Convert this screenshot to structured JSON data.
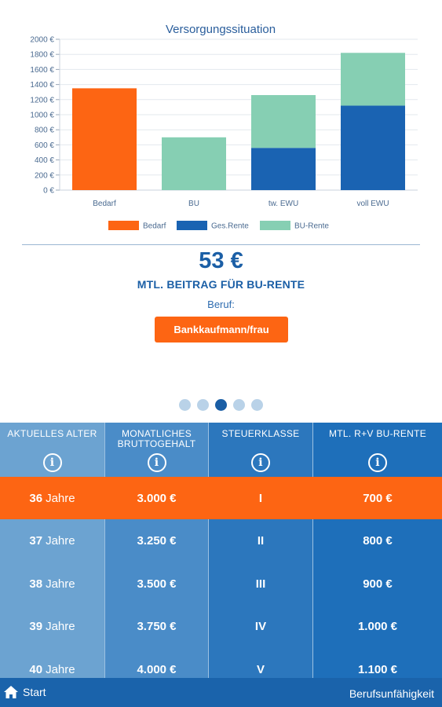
{
  "chart_data": {
    "type": "bar",
    "title": "Versorgungssituation",
    "categories": [
      "Bedarf",
      "BU",
      "tw. EWU",
      "voll EWU"
    ],
    "series": [
      {
        "name": "Bedarf",
        "color": "#fd6513",
        "values": [
          1350,
          0,
          0,
          0
        ]
      },
      {
        "name": "Ges.Rente",
        "color": "#1a63b2",
        "values": [
          0,
          0,
          560,
          1120
        ]
      },
      {
        "name": "BU-Rente",
        "color": "#86cfb3",
        "values": [
          0,
          700,
          700,
          700
        ]
      }
    ],
    "stacked": true,
    "ylim": [
      0,
      2000
    ],
    "yticks": [
      "2000 €",
      "1800 €",
      "1600 €",
      "1400 €",
      "1200 €",
      "1000 €",
      "800 €",
      "600 €",
      "400 €",
      "200 €",
      "0 €"
    ],
    "grid": true,
    "legend_position": "bottom"
  },
  "summary": {
    "price": "53 €",
    "subtitle": "MTL. BEITRAG FÜR BU-RENTE",
    "beruf_label": "Beruf:",
    "job_button": "Bankkaufmann/frau"
  },
  "pager": {
    "count": 5,
    "active_index": 2
  },
  "table": {
    "headers": [
      "AKTUELLES ALTER",
      "MONATLICHES BRUTTOGEHALT",
      "STEUERKLASSE",
      "MTL. R+V BU-RENTE"
    ],
    "header_icon": "info-icon",
    "rows": [
      {
        "age": "36",
        "unit": "Jahre",
        "salary": "3.000 €",
        "tax": "I",
        "pension": "700 €",
        "selected": true
      },
      {
        "age": "37",
        "unit": "Jahre",
        "salary": "3.250 €",
        "tax": "II",
        "pension": "800 €",
        "selected": false
      },
      {
        "age": "38",
        "unit": "Jahre",
        "salary": "3.500 €",
        "tax": "III",
        "pension": "900 €",
        "selected": false
      },
      {
        "age": "39",
        "unit": "Jahre",
        "salary": "3.750 €",
        "tax": "IV",
        "pension": "1.000 €",
        "selected": false
      },
      {
        "age": "40",
        "unit": "Jahre",
        "salary": "4.000 €",
        "tax": "V",
        "pension": "1.100 €",
        "selected": false
      }
    ]
  },
  "bottom_bar": {
    "home_label": "Start",
    "home_icon": "home-icon",
    "section_title": "Berufsunfähigkeit"
  },
  "colors": {
    "accent": "#fd6513",
    "primary": "#1a63ab",
    "text_blue": "#1b5fa6"
  }
}
